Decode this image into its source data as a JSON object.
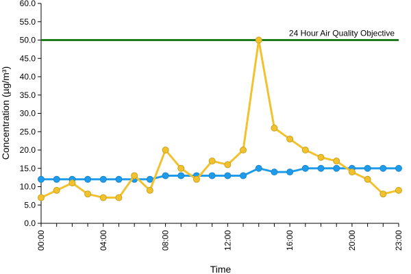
{
  "chart_data": {
    "type": "line",
    "title": "",
    "xlabel": "Time",
    "ylabel": "Concentration (µg/m³)",
    "ylim": [
      0,
      60
    ],
    "y_ticks": [
      "0.0",
      "5.0",
      "10.0",
      "15.0",
      "20.0",
      "25.0",
      "30.0",
      "35.0",
      "40.0",
      "45.0",
      "50.0",
      "55.0",
      "60.0"
    ],
    "x_hours": [
      0,
      1,
      2,
      3,
      4,
      5,
      6,
      7,
      8,
      9,
      10,
      11,
      12,
      13,
      14,
      15,
      16,
      17,
      18,
      19,
      20,
      21,
      22,
      23
    ],
    "x_tick_labels": [
      {
        "hour": 0,
        "label": "00:00"
      },
      {
        "hour": 4,
        "label": "04:00"
      },
      {
        "hour": 8,
        "label": "08:00"
      },
      {
        "hour": 12,
        "label": "12:00"
      },
      {
        "hour": 16,
        "label": "16:00"
      },
      {
        "hour": 20,
        "label": "20:00"
      },
      {
        "hour": 23,
        "label": "23:00"
      }
    ],
    "grid": false,
    "legend": "none",
    "series": [
      {
        "color": "#F2C12E",
        "values": [
          7,
          9,
          11,
          8,
          7,
          7,
          13,
          9,
          20,
          15,
          12,
          17,
          16,
          20,
          50,
          26,
          23,
          20,
          18,
          17,
          14,
          12,
          8,
          9
        ]
      },
      {
        "color": "#1E9BEA",
        "values": [
          12,
          12,
          12,
          12,
          12,
          12,
          12,
          12,
          13,
          13,
          13,
          13,
          13,
          13,
          15,
          14,
          14,
          15,
          15,
          15,
          15,
          15,
          15,
          15
        ]
      }
    ],
    "objective_line": {
      "value": 50,
      "label": "24 Hour Air Quality Objective",
      "color": "#1E7B1E"
    }
  }
}
